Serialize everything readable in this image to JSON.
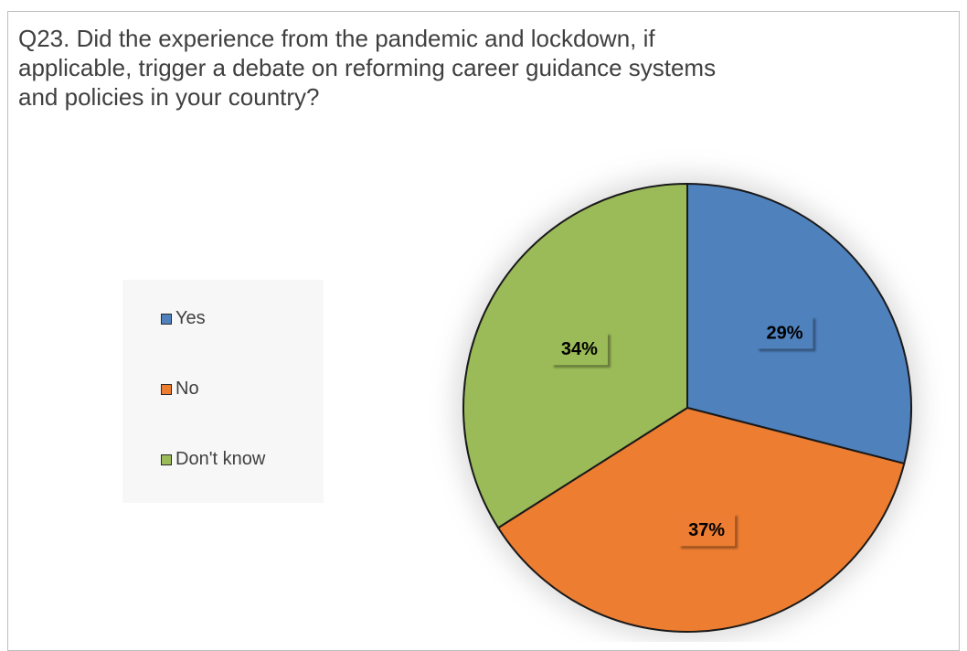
{
  "chart_data": {
    "type": "pie",
    "title": "Q23. Did the experience from the pandemic and lockdown, if applicable, trigger a debate on reforming career guidance systems and policies in your country?",
    "legend_position": "left",
    "slices": [
      {
        "label": "Yes",
        "value": 29,
        "display": "29%",
        "color": "#4f81bd"
      },
      {
        "label": "No",
        "value": 37,
        "display": "37%",
        "color": "#ed7d31"
      },
      {
        "label": "Don't know",
        "value": 34,
        "display": "34%",
        "color": "#9bbb59"
      }
    ]
  }
}
